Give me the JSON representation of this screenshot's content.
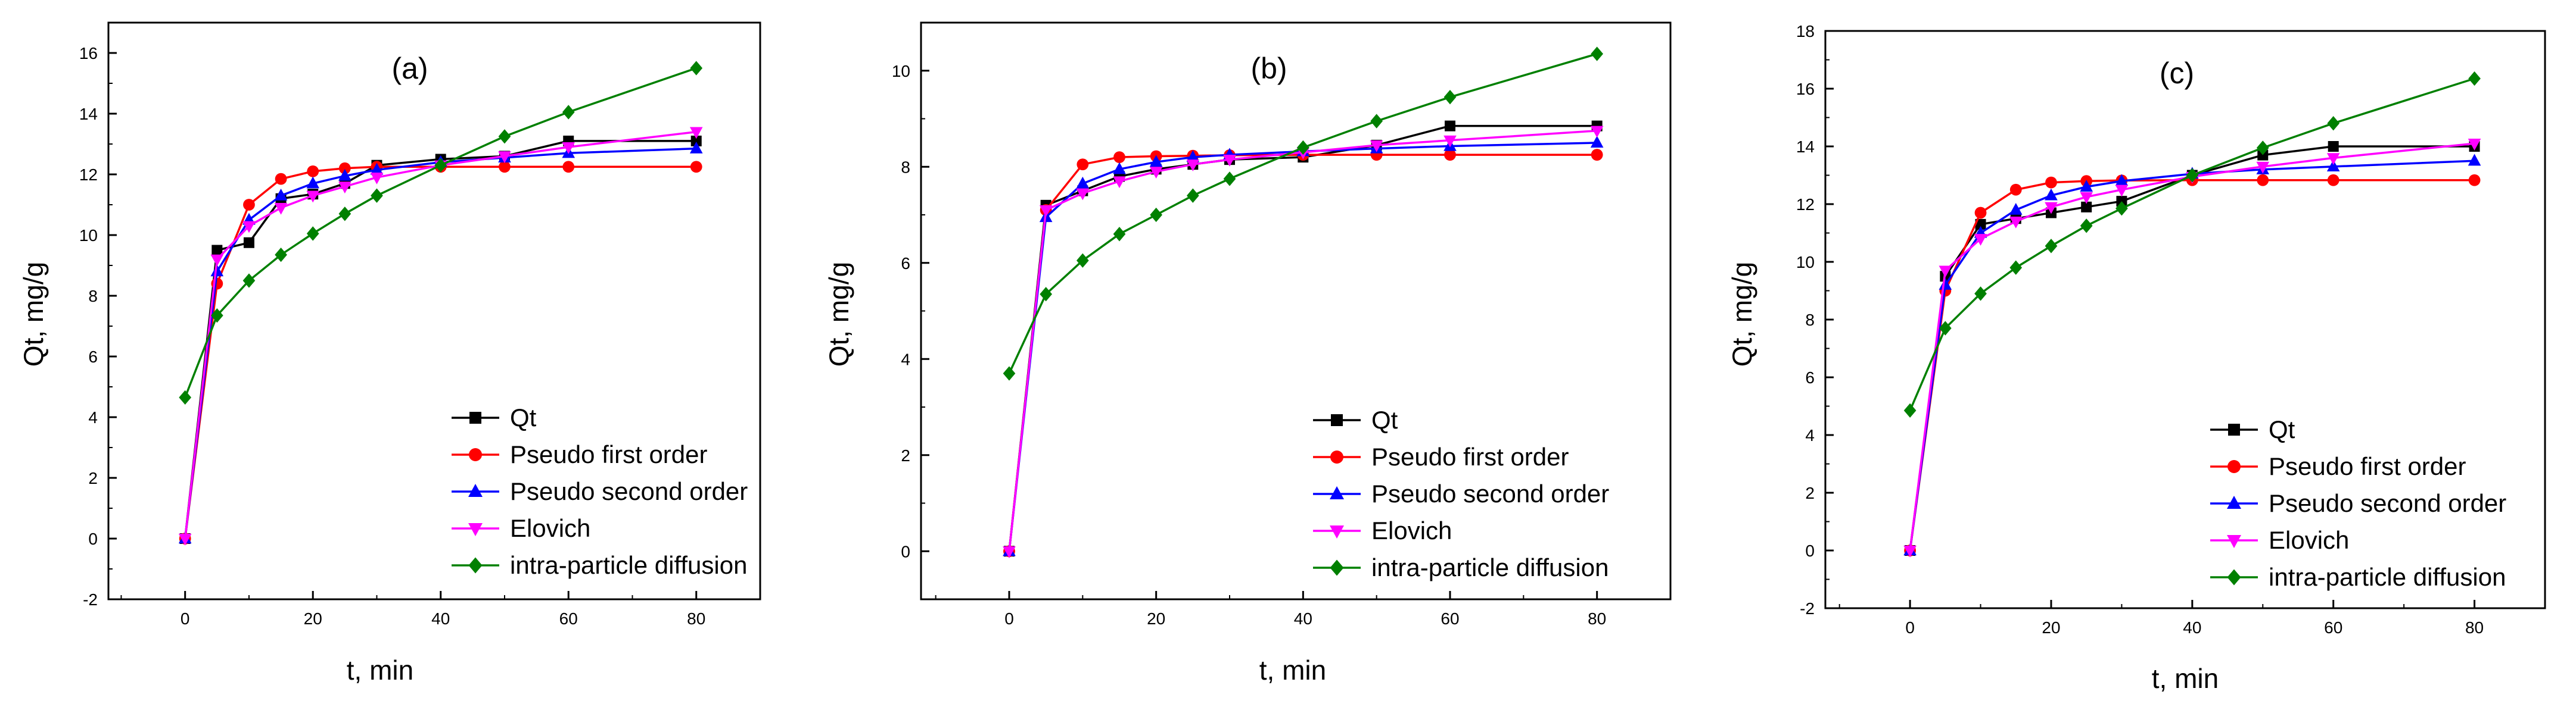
{
  "chart_data": [
    {
      "type": "line",
      "panel_label": "(a)",
      "xlabel": "t, min",
      "ylabel": "Qt, mg/g",
      "xlim": [
        -12,
        90
      ],
      "ylim": [
        -2,
        17
      ],
      "xticks": [
        0,
        20,
        40,
        60,
        80
      ],
      "yticks": [
        -2,
        0,
        2,
        4,
        6,
        8,
        10,
        12,
        14,
        16
      ],
      "legend_position": "bottom-right",
      "series": [
        {
          "name": "Qt",
          "color": "#000000",
          "marker": "square",
          "x": [
            0,
            5,
            10,
            15,
            20,
            25,
            30,
            40,
            50,
            60,
            80
          ],
          "y": [
            0,
            9.5,
            9.75,
            11.2,
            11.35,
            11.7,
            12.3,
            12.5,
            12.6,
            13.1,
            13.1
          ]
        },
        {
          "name": "Pseudo first order",
          "color": "#ff0000",
          "marker": "circle",
          "x": [
            0,
            5,
            10,
            15,
            20,
            25,
            30,
            40,
            50,
            60,
            80
          ],
          "y": [
            0,
            8.4,
            11.0,
            11.85,
            12.1,
            12.2,
            12.25,
            12.25,
            12.25,
            12.25,
            12.25
          ]
        },
        {
          "name": "Pseudo second order",
          "color": "#0000ff",
          "marker": "triangle-up",
          "x": [
            0,
            5,
            10,
            15,
            20,
            25,
            30,
            40,
            50,
            60,
            80
          ],
          "y": [
            0,
            8.8,
            10.5,
            11.3,
            11.7,
            11.95,
            12.15,
            12.4,
            12.55,
            12.7,
            12.85
          ]
        },
        {
          "name": "Elovich",
          "color": "#ff00ff",
          "marker": "triangle-down",
          "x": [
            0,
            5,
            10,
            15,
            20,
            25,
            30,
            40,
            50,
            60,
            80
          ],
          "y": [
            0,
            9.2,
            10.3,
            10.9,
            11.3,
            11.6,
            11.9,
            12.3,
            12.6,
            12.9,
            13.4
          ]
        },
        {
          "name": "intra-particle diffusion",
          "color": "#008000",
          "marker": "diamond",
          "x": [
            0,
            5,
            10,
            15,
            20,
            25,
            30,
            40,
            50,
            60,
            80
          ],
          "y": [
            4.65,
            7.35,
            8.5,
            9.35,
            10.05,
            10.7,
            11.3,
            12.3,
            13.25,
            14.05,
            15.5
          ]
        }
      ]
    },
    {
      "type": "line",
      "panel_label": "(b)",
      "xlabel": "t, min",
      "ylabel": "Qt, mg/g",
      "xlim": [
        -12,
        90
      ],
      "ylim": [
        -1,
        11
      ],
      "xticks": [
        0,
        20,
        40,
        60,
        80
      ],
      "yticks": [
        0,
        2,
        4,
        6,
        8,
        10
      ],
      "legend_position": "bottom-right",
      "series": [
        {
          "name": "Qt",
          "color": "#000000",
          "marker": "square",
          "x": [
            0,
            5,
            10,
            15,
            20,
            25,
            30,
            40,
            50,
            60,
            80
          ],
          "y": [
            0,
            7.2,
            7.5,
            7.8,
            7.95,
            8.05,
            8.15,
            8.2,
            8.45,
            8.85,
            8.85
          ]
        },
        {
          "name": "Pseudo first order",
          "color": "#ff0000",
          "marker": "circle",
          "x": [
            0,
            5,
            10,
            15,
            20,
            25,
            30,
            40,
            50,
            60,
            80
          ],
          "y": [
            0,
            7.1,
            8.05,
            8.2,
            8.22,
            8.23,
            8.24,
            8.25,
            8.25,
            8.25,
            8.25
          ]
        },
        {
          "name": "Pseudo second order",
          "color": "#0000ff",
          "marker": "triangle-up",
          "x": [
            0,
            5,
            10,
            15,
            20,
            25,
            30,
            40,
            50,
            60,
            80
          ],
          "y": [
            0,
            6.95,
            7.65,
            7.95,
            8.1,
            8.2,
            8.25,
            8.32,
            8.38,
            8.43,
            8.5
          ]
        },
        {
          "name": "Elovich",
          "color": "#ff00ff",
          "marker": "triangle-down",
          "x": [
            0,
            5,
            10,
            15,
            20,
            25,
            30,
            40,
            50,
            60,
            80
          ],
          "y": [
            0,
            7.1,
            7.45,
            7.7,
            7.9,
            8.05,
            8.15,
            8.3,
            8.45,
            8.55,
            8.75
          ]
        },
        {
          "name": "intra-particle diffusion",
          "color": "#008000",
          "marker": "diamond",
          "x": [
            0,
            5,
            10,
            15,
            20,
            25,
            30,
            40,
            50,
            60,
            80
          ],
          "y": [
            3.7,
            5.35,
            6.05,
            6.6,
            7.0,
            7.4,
            7.75,
            8.4,
            8.95,
            9.45,
            10.35
          ]
        }
      ]
    },
    {
      "type": "line",
      "panel_label": "(c)",
      "xlabel": "t, min",
      "ylabel": "Qt, mg/g",
      "xlim": [
        -12,
        90
      ],
      "ylim": [
        -2,
        18
      ],
      "xticks": [
        0,
        20,
        40,
        60,
        80
      ],
      "yticks": [
        -2,
        0,
        2,
        4,
        6,
        8,
        10,
        12,
        14,
        16,
        18
      ],
      "legend_position": "bottom-right",
      "series": [
        {
          "name": "Qt",
          "color": "#000000",
          "marker": "square",
          "x": [
            0,
            5,
            10,
            15,
            20,
            25,
            30,
            40,
            50,
            60,
            80
          ],
          "y": [
            0,
            9.5,
            11.3,
            11.5,
            11.7,
            11.9,
            12.1,
            13.0,
            13.7,
            14.0,
            14.0
          ]
        },
        {
          "name": "Pseudo first order",
          "color": "#ff0000",
          "marker": "circle",
          "x": [
            0,
            5,
            10,
            15,
            20,
            25,
            30,
            40,
            50,
            60,
            80
          ],
          "y": [
            0,
            9.0,
            11.7,
            12.5,
            12.75,
            12.8,
            12.82,
            12.83,
            12.83,
            12.83,
            12.83
          ]
        },
        {
          "name": "Pseudo second order",
          "color": "#0000ff",
          "marker": "triangle-up",
          "x": [
            0,
            5,
            10,
            15,
            20,
            25,
            30,
            40,
            50,
            60,
            80
          ],
          "y": [
            0,
            9.2,
            11.0,
            11.8,
            12.3,
            12.6,
            12.8,
            13.05,
            13.2,
            13.3,
            13.5
          ]
        },
        {
          "name": "Elovich",
          "color": "#ff00ff",
          "marker": "triangle-down",
          "x": [
            0,
            5,
            10,
            15,
            20,
            25,
            30,
            40,
            50,
            60,
            80
          ],
          "y": [
            0,
            9.7,
            10.8,
            11.4,
            11.9,
            12.25,
            12.5,
            12.95,
            13.3,
            13.6,
            14.1
          ]
        },
        {
          "name": "intra-particle diffusion",
          "color": "#008000",
          "marker": "diamond",
          "x": [
            0,
            5,
            10,
            15,
            20,
            25,
            30,
            40,
            50,
            60,
            80
          ],
          "y": [
            4.85,
            7.7,
            8.9,
            9.8,
            10.55,
            11.25,
            11.85,
            13.0,
            13.95,
            14.8,
            16.35
          ]
        }
      ]
    }
  ]
}
